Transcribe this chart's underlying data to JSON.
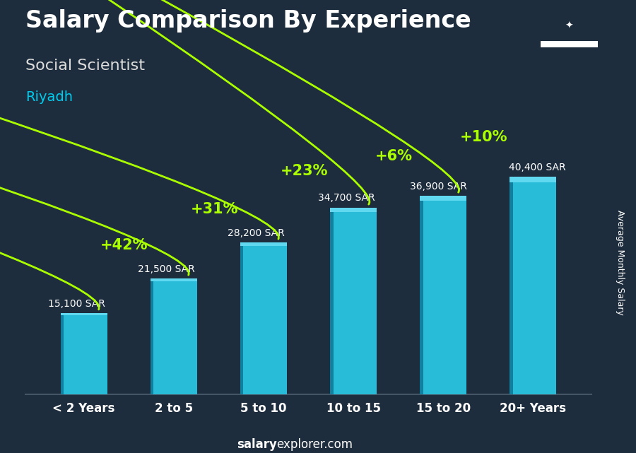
{
  "title": "Salary Comparison By Experience",
  "subtitle": "Social Scientist",
  "city": "Riyadh",
  "categories": [
    "< 2 Years",
    "2 to 5",
    "5 to 10",
    "10 to 15",
    "15 to 20",
    "20+ Years"
  ],
  "values": [
    15100,
    21500,
    28200,
    34700,
    36900,
    40400
  ],
  "salary_labels": [
    "15,100 SAR",
    "21,500 SAR",
    "28,200 SAR",
    "34,700 SAR",
    "36,900 SAR",
    "40,400 SAR"
  ],
  "pct_changes": [
    null,
    "+42%",
    "+31%",
    "+23%",
    "+6%",
    "+10%"
  ],
  "bar_color_face": "#29bcd8",
  "bar_color_dark": "#1080a0",
  "bar_color_top": "#60d8f0",
  "background_color": "#1e2d3d",
  "title_color": "#ffffff",
  "subtitle_color": "#dddddd",
  "city_color": "#00ccee",
  "label_color": "#ffffff",
  "pct_color": "#aaff00",
  "arrow_color": "#aaff00",
  "footer_salary_color": "#ffffff",
  "footer_explorer_color": "#ffffff",
  "ylabel": "Average Monthly Salary",
  "ylim_max": 48000,
  "bar_width": 0.52,
  "title_fontsize": 24,
  "subtitle_fontsize": 16,
  "city_fontsize": 14,
  "pct_fontsize": 15,
  "salary_label_fontsize": 10,
  "xtick_fontsize": 12,
  "footer_fontsize": 12
}
